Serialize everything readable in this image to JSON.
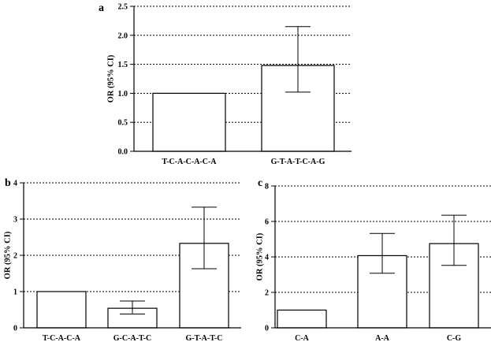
{
  "chart_data": [
    {
      "panel_label": "a",
      "type": "bar",
      "categories": [
        "T-C-A-C-A-C-A",
        "G-T-A-T-C-A-G"
      ],
      "values": [
        1.0,
        1.48
      ],
      "ci_low": [
        null,
        1.02
      ],
      "ci_high": [
        null,
        2.15
      ],
      "ylabel": "OR (95% CI)",
      "ylim": [
        0,
        2.5
      ],
      "yticks": [
        "0.0",
        "0.5",
        "1.0",
        "1.5",
        "2.0",
        "2.5"
      ],
      "grid": "horizontal dotted",
      "bar_color": "#ffffff"
    },
    {
      "panel_label": "b",
      "type": "bar",
      "categories": [
        "T-C-A-C-A",
        "G-C-A-T-C",
        "G-T-A-T-C"
      ],
      "values": [
        1.0,
        0.54,
        2.33
      ],
      "ci_low": [
        null,
        0.38,
        1.63
      ],
      "ci_high": [
        null,
        0.74,
        3.33
      ],
      "ylabel": "OR (95% CI)",
      "ylim": [
        0,
        4
      ],
      "yticks": [
        "0",
        "1",
        "2",
        "3",
        "4"
      ],
      "grid": "horizontal dotted",
      "bar_color": "#ffffff"
    },
    {
      "panel_label": "c",
      "type": "bar",
      "categories": [
        "C-A",
        "A-A",
        "C-G"
      ],
      "values": [
        1.0,
        4.07,
        4.75
      ],
      "ci_low": [
        null,
        3.08,
        3.52
      ],
      "ci_high": [
        null,
        5.32,
        6.35
      ],
      "ylabel": "OR (95% CI)",
      "ylim": [
        0,
        8
      ],
      "yticks": [
        "0",
        "2",
        "4",
        "6",
        "8"
      ],
      "grid": "horizontal dotted",
      "bar_color": "#ffffff"
    }
  ]
}
